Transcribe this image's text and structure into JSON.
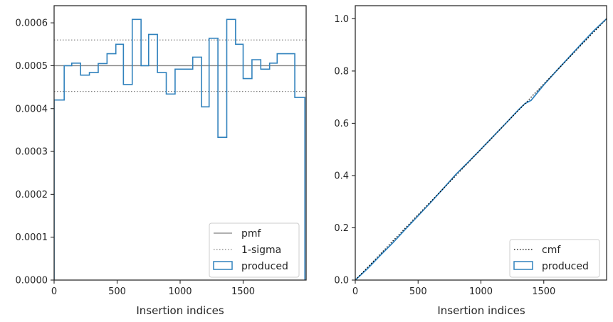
{
  "chart_data": [
    {
      "type": "step-histogram",
      "xlabel": "Insertion indices",
      "ylabel": "",
      "xlim": [
        0,
        2000
      ],
      "ylim": [
        0,
        0.00064
      ],
      "xticks": [
        0,
        500,
        1000,
        1500
      ],
      "xtick_labels": [
        "0",
        "500",
        "1000",
        "1500"
      ],
      "yticks": [
        0,
        0.0001,
        0.0002,
        0.0003,
        0.0004,
        0.0005,
        0.0006
      ],
      "ytick_labels": [
        "0.0000",
        "0.0001",
        "0.0002",
        "0.0003",
        "0.0004",
        "0.0005",
        "0.0006"
      ],
      "grid": false,
      "legend_placement": "lower-right",
      "pmf": 0.0005,
      "sigma_band": [
        0.00044,
        0.00056
      ],
      "bin_edges": [
        0,
        80,
        140,
        210,
        280,
        350,
        420,
        490,
        550,
        620,
        690,
        750,
        820,
        890,
        960,
        1030,
        1100,
        1170,
        1230,
        1300,
        1370,
        1440,
        1500,
        1570,
        1640,
        1710,
        1770,
        1840,
        1910,
        1990
      ],
      "counts": [
        0.00042,
        0.0005,
        0.000506,
        0.000478,
        0.000484,
        0.000505,
        0.000528,
        0.00055,
        0.000456,
        0.000608,
        0.0005,
        0.000573,
        0.000484,
        0.000434,
        0.000492,
        0.000492,
        0.00052,
        0.000404,
        0.000564,
        0.000333,
        0.000608,
        0.00055,
        0.00047,
        0.000514,
        0.000492,
        0.000506,
        0.000528,
        0.000528,
        0.000426
      ],
      "legend": [
        {
          "label": "pmf",
          "style": "solid",
          "color": "#808080"
        },
        {
          "label": "1-sigma",
          "style": "dotted",
          "color": "#808080"
        },
        {
          "label": "produced",
          "style": "patch",
          "color": "#3182bd"
        }
      ]
    },
    {
      "type": "line",
      "xlabel": "Insertion indices",
      "ylabel": "",
      "xlim": [
        0,
        2000
      ],
      "ylim": [
        0,
        1.05
      ],
      "xticks": [
        0,
        500,
        1000,
        1500
      ],
      "xtick_labels": [
        "0",
        "500",
        "1000",
        "1500"
      ],
      "yticks": [
        0,
        0.2,
        0.4,
        0.6,
        0.8,
        1.0
      ],
      "ytick_labels": [
        "0.0",
        "0.2",
        "0.4",
        "0.6",
        "0.8",
        "1.0"
      ],
      "grid": false,
      "legend_placement": "lower-right",
      "produced_x": [
        0,
        100,
        200,
        300,
        400,
        500,
        600,
        700,
        800,
        900,
        1000,
        1100,
        1200,
        1300,
        1350,
        1400,
        1500,
        1600,
        1700,
        1800,
        1900,
        2000
      ],
      "produced_y": [
        0,
        0.045,
        0.095,
        0.143,
        0.195,
        0.246,
        0.297,
        0.35,
        0.404,
        0.452,
        0.501,
        0.551,
        0.601,
        0.652,
        0.675,
        0.688,
        0.747,
        0.8,
        0.852,
        0.904,
        0.955,
        1.0
      ],
      "legend": [
        {
          "label": "cmf",
          "style": "dotted",
          "color": "#000000"
        },
        {
          "label": "produced",
          "style": "patch",
          "color": "#3182bd"
        }
      ]
    }
  ]
}
